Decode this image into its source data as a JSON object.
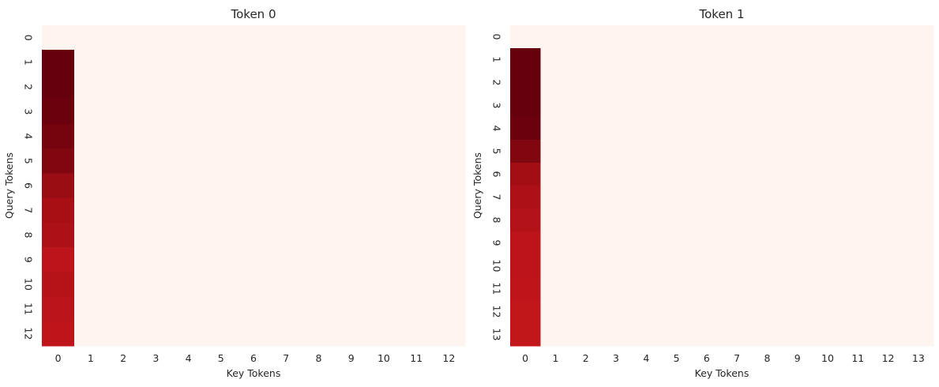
{
  "chart_data": [
    {
      "type": "heatmap",
      "title": "Token 0",
      "xlabel": "Key Tokens",
      "ylabel": "Query Tokens",
      "x_ticks": [
        "0",
        "1",
        "2",
        "3",
        "4",
        "5",
        "6",
        "7",
        "8",
        "9",
        "10",
        "11",
        "12"
      ],
      "y_ticks": [
        "0",
        "1",
        "2",
        "3",
        "4",
        "5",
        "6",
        "7",
        "8",
        "9",
        "10",
        "11",
        "12"
      ],
      "colormap": "Reds",
      "colorbar": false,
      "value_range": [
        0,
        1
      ],
      "values": [
        [
          0,
          0,
          0,
          0,
          0,
          0,
          0,
          0,
          0,
          0,
          0,
          0,
          0
        ],
        [
          1.0,
          0,
          0,
          0,
          0,
          0,
          0,
          0,
          0,
          0,
          0,
          0,
          0
        ],
        [
          1.0,
          0,
          0,
          0,
          0,
          0,
          0,
          0,
          0,
          0,
          0,
          0,
          0
        ],
        [
          0.99,
          0,
          0,
          0,
          0,
          0,
          0,
          0,
          0,
          0,
          0,
          0,
          0
        ],
        [
          0.97,
          0,
          0,
          0,
          0,
          0,
          0,
          0,
          0,
          0,
          0,
          0,
          0
        ],
        [
          0.95,
          0,
          0,
          0,
          0,
          0,
          0,
          0,
          0,
          0,
          0,
          0,
          0
        ],
        [
          0.9,
          0,
          0,
          0,
          0,
          0,
          0,
          0,
          0,
          0,
          0,
          0,
          0
        ],
        [
          0.87,
          0,
          0,
          0,
          0,
          0,
          0,
          0,
          0,
          0,
          0,
          0,
          0
        ],
        [
          0.85,
          0,
          0,
          0,
          0,
          0,
          0,
          0,
          0,
          0,
          0,
          0,
          0
        ],
        [
          0.8,
          0,
          0,
          0,
          0,
          0,
          0,
          0,
          0,
          0,
          0,
          0,
          0
        ],
        [
          0.82,
          0,
          0,
          0,
          0,
          0,
          0,
          0,
          0,
          0,
          0,
          0,
          0
        ],
        [
          0.81,
          0,
          0,
          0,
          0,
          0,
          0,
          0,
          0,
          0,
          0,
          0,
          0
        ],
        [
          0.79,
          0,
          0,
          0,
          0,
          0,
          0,
          0,
          0,
          0,
          0,
          0,
          0
        ]
      ]
    },
    {
      "type": "heatmap",
      "title": "Token 1",
      "xlabel": "Key Tokens",
      "ylabel": "Query Tokens",
      "x_ticks": [
        "0",
        "1",
        "2",
        "3",
        "4",
        "5",
        "6",
        "7",
        "8",
        "9",
        "10",
        "11",
        "12",
        "13"
      ],
      "y_ticks": [
        "0",
        "1",
        "2",
        "3",
        "4",
        "5",
        "6",
        "7",
        "8",
        "9",
        "10",
        "11",
        "12",
        "13"
      ],
      "colormap": "Reds",
      "colorbar": false,
      "value_range": [
        0,
        1
      ],
      "values": [
        [
          0,
          0,
          0,
          0,
          0,
          0,
          0,
          0,
          0,
          0,
          0,
          0,
          0,
          0
        ],
        [
          1.0,
          0,
          0,
          0,
          0,
          0,
          0,
          0,
          0,
          0,
          0,
          0,
          0,
          0
        ],
        [
          1.0,
          0,
          0,
          0,
          0,
          0,
          0,
          0,
          0,
          0,
          0,
          0,
          0,
          0
        ],
        [
          1.0,
          0,
          0,
          0,
          0,
          0,
          0,
          0,
          0,
          0,
          0,
          0,
          0,
          0
        ],
        [
          0.99,
          0,
          0,
          0,
          0,
          0,
          0,
          0,
          0,
          0,
          0,
          0,
          0,
          0
        ],
        [
          0.95,
          0,
          0,
          0,
          0,
          0,
          0,
          0,
          0,
          0,
          0,
          0,
          0,
          0
        ],
        [
          0.88,
          0,
          0,
          0,
          0,
          0,
          0,
          0,
          0,
          0,
          0,
          0,
          0,
          0
        ],
        [
          0.85,
          0,
          0,
          0,
          0,
          0,
          0,
          0,
          0,
          0,
          0,
          0,
          0,
          0
        ],
        [
          0.83,
          0,
          0,
          0,
          0,
          0,
          0,
          0,
          0,
          0,
          0,
          0,
          0,
          0
        ],
        [
          0.8,
          0,
          0,
          0,
          0,
          0,
          0,
          0,
          0,
          0,
          0,
          0,
          0,
          0
        ],
        [
          0.8,
          0,
          0,
          0,
          0,
          0,
          0,
          0,
          0,
          0,
          0,
          0,
          0,
          0
        ],
        [
          0.79,
          0,
          0,
          0,
          0,
          0,
          0,
          0,
          0,
          0,
          0,
          0,
          0,
          0
        ],
        [
          0.78,
          0,
          0,
          0,
          0,
          0,
          0,
          0,
          0,
          0,
          0,
          0,
          0,
          0
        ],
        [
          0.78,
          0,
          0,
          0,
          0,
          0,
          0,
          0,
          0,
          0,
          0,
          0,
          0,
          0
        ]
      ]
    }
  ]
}
